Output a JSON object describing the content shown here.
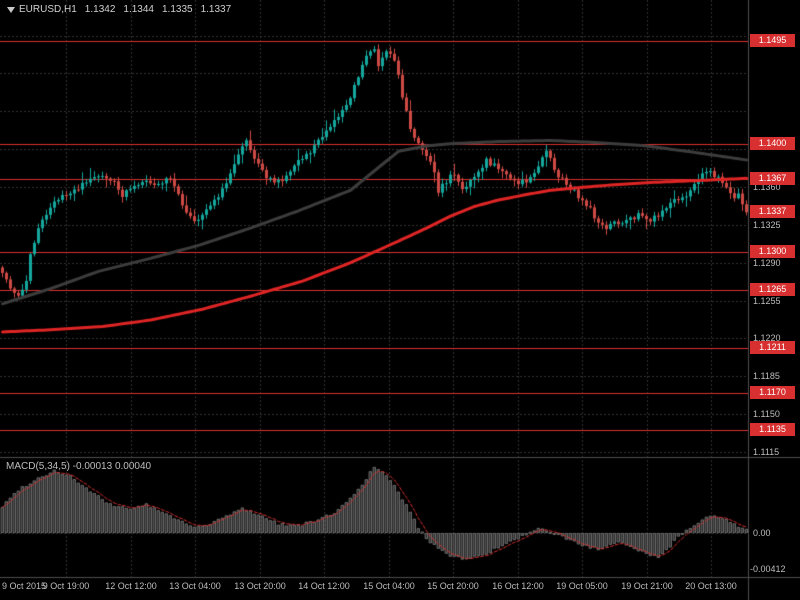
{
  "header": {
    "symbol_timeframe": "EURUSD,H1",
    "open": "1.1342",
    "high": "1.1344",
    "low": "1.1335",
    "close": "1.1337"
  },
  "icons": {
    "chart_shift_marker": "triangle-down"
  },
  "colors": {
    "background": "#000000",
    "grid": "#323232",
    "separator": "#4E4E4E",
    "axis_text": "#BDBDBD",
    "header_text": "#D0D0D0",
    "bull": "#14A79C",
    "bear": "#CE4A45",
    "level_line": "#D83030",
    "level_box_bg": "#D83030",
    "level_box_text": "#FFFFFF",
    "ma_dark": "#3D3D3D",
    "ma_red": "#E02525",
    "macd_bar_fill": "#303030",
    "macd_bar_stroke": "#6A6A6A",
    "macd_signal": "#D83030"
  },
  "chart_data": {
    "type": "candlestick",
    "symbol": "EURUSD",
    "timeframe": "H1",
    "ohlc": {
      "open": 1.1342,
      "high": 1.1344,
      "low": 1.1335,
      "close": 1.1337
    },
    "ylim": [
      1.111,
      1.1533
    ],
    "grid": "dashed",
    "legend_position": "none",
    "y_axis_ticks": [
      {
        "price": 1.136,
        "label": "1.1360"
      },
      {
        "price": 1.1325,
        "label": "1.1325"
      },
      {
        "price": 1.129,
        "label": "1.1290"
      },
      {
        "price": 1.1255,
        "label": "1.1255"
      },
      {
        "price": 1.122,
        "label": "1.1220"
      },
      {
        "price": 1.1185,
        "label": "1.1185"
      },
      {
        "price": 1.115,
        "label": "1.1150"
      },
      {
        "price": 1.1115,
        "label": "1.1115"
      }
    ],
    "x_axis_labels": [
      "9 Oct 2015",
      "9 Oct 19:00",
      "12 Oct 12:00",
      "13 Oct 04:00",
      "13 Oct 20:00",
      "14 Oct 12:00",
      "15 Oct 04:00",
      "15 Oct 20:00",
      "16 Oct 12:00",
      "19 Oct 05:00",
      "19 Oct 21:00",
      "20 Oct 13:00"
    ],
    "levels": [
      {
        "price": 1.1495,
        "label": "1.1495"
      },
      {
        "price": 1.14,
        "label": "1.1400"
      },
      {
        "price": 1.1367,
        "label": "1.1367"
      },
      {
        "price": 1.13,
        "label": "1.1300"
      },
      {
        "price": 1.1265,
        "label": "1.1265"
      },
      {
        "price": 1.1211,
        "label": "1.1211"
      },
      {
        "price": 1.117,
        "label": "1.1170"
      },
      {
        "price": 1.1135,
        "label": "1.1135"
      }
    ],
    "current_price": {
      "price": 1.1337,
      "label": "1.1337"
    },
    "price_path_anchors": [
      [
        0,
        1.1278
      ],
      [
        2,
        1.1268
      ],
      [
        4,
        1.1258
      ],
      [
        6,
        1.1272
      ],
      [
        7,
        1.1298
      ],
      [
        9,
        1.1322
      ],
      [
        12,
        1.1342
      ],
      [
        15,
        1.1352
      ],
      [
        18,
        1.1358
      ],
      [
        21,
        1.1364
      ],
      [
        24,
        1.137
      ],
      [
        27,
        1.1368
      ],
      [
        30,
        1.1352
      ],
      [
        33,
        1.136
      ],
      [
        36,
        1.1368
      ],
      [
        39,
        1.1362
      ],
      [
        42,
        1.137
      ],
      [
        44,
        1.1352
      ],
      [
        46,
        1.1338
      ],
      [
        48,
        1.1328
      ],
      [
        51,
        1.134
      ],
      [
        54,
        1.1352
      ],
      [
        57,
        1.1372
      ],
      [
        59,
        1.1388
      ],
      [
        61,
        1.1402
      ],
      [
        63,
        1.1386
      ],
      [
        66,
        1.137
      ],
      [
        69,
        1.1364
      ],
      [
        72,
        1.1376
      ],
      [
        75,
        1.1386
      ],
      [
        78,
        1.1396
      ],
      [
        81,
        1.1412
      ],
      [
        84,
        1.1424
      ],
      [
        87,
        1.1444
      ],
      [
        89,
        1.1462
      ],
      [
        91,
        1.148
      ],
      [
        93,
        1.1488
      ],
      [
        94,
        1.1472
      ],
      [
        96,
        1.1488
      ],
      [
        98,
        1.1478
      ],
      [
        100,
        1.1444
      ],
      [
        102,
        1.1412
      ],
      [
        104,
        1.14
      ],
      [
        106,
        1.139
      ],
      [
        108,
        1.1372
      ],
      [
        109,
        1.1356
      ],
      [
        111,
        1.1366
      ],
      [
        113,
        1.1372
      ],
      [
        115,
        1.1356
      ],
      [
        117,
        1.1364
      ],
      [
        119,
        1.1374
      ],
      [
        121,
        1.1384
      ],
      [
        123,
        1.138
      ],
      [
        126,
        1.1372
      ],
      [
        129,
        1.1362
      ],
      [
        132,
        1.1368
      ],
      [
        134,
        1.1378
      ],
      [
        136,
        1.1394
      ],
      [
        138,
        1.1376
      ],
      [
        140,
        1.1366
      ],
      [
        143,
        1.1356
      ],
      [
        145,
        1.1348
      ],
      [
        147,
        1.134
      ],
      [
        149,
        1.1326
      ],
      [
        151,
        1.132
      ],
      [
        153,
        1.133
      ],
      [
        155,
        1.1326
      ],
      [
        157,
        1.133
      ],
      [
        159,
        1.1334
      ],
      [
        161,
        1.1328
      ],
      [
        163,
        1.1332
      ],
      [
        165,
        1.1338
      ],
      [
        167,
        1.1344
      ],
      [
        169,
        1.135
      ],
      [
        171,
        1.1354
      ],
      [
        173,
        1.1362
      ],
      [
        175,
        1.1372
      ],
      [
        177,
        1.1375
      ],
      [
        179,
        1.1368
      ],
      [
        181,
        1.136
      ],
      [
        183,
        1.135
      ],
      [
        184,
        1.1356
      ],
      [
        185,
        1.1346
      ],
      [
        186,
        1.1337
      ]
    ],
    "ma_dark_anchors": [
      [
        0,
        1.1252
      ],
      [
        12,
        1.1266
      ],
      [
        24,
        1.1282
      ],
      [
        37,
        1.1294
      ],
      [
        49,
        1.1306
      ],
      [
        62,
        1.1322
      ],
      [
        74,
        1.1338
      ],
      [
        87,
        1.1357
      ],
      [
        99,
        1.1393
      ],
      [
        106,
        1.1398
      ],
      [
        112,
        1.14
      ],
      [
        124,
        1.1402
      ],
      [
        137,
        1.1403
      ],
      [
        149,
        1.1401
      ],
      [
        161,
        1.1398
      ],
      [
        173,
        1.1392
      ],
      [
        186,
        1.1385
      ]
    ],
    "ma_red_anchors": [
      [
        0,
        1.1226
      ],
      [
        12,
        1.1228
      ],
      [
        25,
        1.1231
      ],
      [
        37,
        1.1237
      ],
      [
        50,
        1.1247
      ],
      [
        62,
        1.1259
      ],
      [
        75,
        1.1273
      ],
      [
        87,
        1.129
      ],
      [
        99,
        1.131
      ],
      [
        106,
        1.1322
      ],
      [
        112,
        1.1333
      ],
      [
        118,
        1.1342
      ],
      [
        124,
        1.1348
      ],
      [
        131,
        1.1353
      ],
      [
        137,
        1.1357
      ],
      [
        149,
        1.1361
      ],
      [
        161,
        1.1364
      ],
      [
        174,
        1.1366
      ],
      [
        186,
        1.1368
      ]
    ],
    "macd": {
      "label": "MACD(5,34,5) -0.00013 0.00040",
      "values": {
        "macd": -0.00013,
        "signal": 0.0004
      },
      "axis": {
        "zero_label": "0.00",
        "min_label": "-0.00412",
        "min_value": -0.00412
      },
      "hist_anchors": [
        [
          0,
          0.0028
        ],
        [
          4,
          0.0046
        ],
        [
          9,
          0.0058
        ],
        [
          13,
          0.0066
        ],
        [
          17,
          0.006
        ],
        [
          22,
          0.0044
        ],
        [
          27,
          0.003
        ],
        [
          32,
          0.0026
        ],
        [
          36,
          0.003
        ],
        [
          41,
          0.002
        ],
        [
          46,
          0.001
        ],
        [
          50,
          0.0006
        ],
        [
          55,
          0.0016
        ],
        [
          60,
          0.0026
        ],
        [
          64,
          0.002
        ],
        [
          69,
          0.001
        ],
        [
          74,
          0.0008
        ],
        [
          79,
          0.0014
        ],
        [
          83,
          0.0022
        ],
        [
          87,
          0.0036
        ],
        [
          90,
          0.0052
        ],
        [
          93,
          0.007
        ],
        [
          96,
          0.006
        ],
        [
          99,
          0.0044
        ],
        [
          102,
          0.0022
        ],
        [
          104,
          0.0006
        ],
        [
          106,
          -0.0006
        ],
        [
          109,
          -0.0016
        ],
        [
          112,
          -0.0024
        ],
        [
          116,
          -0.0028
        ],
        [
          120,
          -0.0024
        ],
        [
          124,
          -0.0016
        ],
        [
          128,
          -0.0008
        ],
        [
          131,
          -0.0002
        ],
        [
          134,
          0.0004
        ],
        [
          137,
          0.0002
        ],
        [
          140,
          -0.0004
        ],
        [
          143,
          -0.001
        ],
        [
          146,
          -0.0014
        ],
        [
          149,
          -0.0018
        ],
        [
          152,
          -0.0014
        ],
        [
          155,
          -0.001
        ],
        [
          158,
          -0.0016
        ],
        [
          161,
          -0.0022
        ],
        [
          164,
          -0.0026
        ],
        [
          167,
          -0.0014
        ],
        [
          169,
          -0.0004
        ],
        [
          171,
          0.0004
        ],
        [
          174,
          0.0012
        ],
        [
          177,
          0.0018
        ],
        [
          180,
          0.0016
        ],
        [
          183,
          0.0009
        ],
        [
          186,
          0.0004
        ]
      ]
    }
  }
}
